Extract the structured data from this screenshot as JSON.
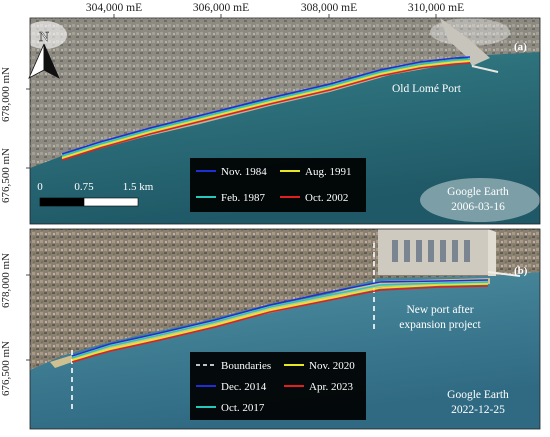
{
  "axes": {
    "easting_ticks": [
      "304,000 mE",
      "306,000 mE",
      "308,000 mE",
      "310,000 mE"
    ],
    "northing_ticks_a": [
      "678,000 mN",
      "676,500 mN"
    ],
    "northing_ticks_b": [
      "678,000 mN",
      "676,500 mN"
    ]
  },
  "north_arrow": {
    "label": "N",
    "icon": "north-arrow-icon"
  },
  "scale_bar": {
    "labels": [
      "0",
      "0.75",
      "1.5 km"
    ]
  },
  "panel_a": {
    "tag": "(a)",
    "place_label": "Old Lomé Port",
    "source": "Google Earth",
    "date": "2006-03-16",
    "legend": [
      {
        "label": "Nov. 1984",
        "color": "#1f2fd6",
        "style": "solid"
      },
      {
        "label": "Aug. 1991",
        "color": "#e8e624",
        "style": "solid"
      },
      {
        "label": "Feb. 1987",
        "color": "#27c7b9",
        "style": "solid"
      },
      {
        "label": "Oct. 2002",
        "color": "#e21f1f",
        "style": "solid"
      }
    ]
  },
  "panel_b": {
    "tag": "(b)",
    "place_label_line1": "New port after",
    "place_label_line2": "expansion project",
    "source": "Google Earth",
    "date": "2022-12-25",
    "legend": [
      {
        "label": "Boundaries",
        "color": "#ffffff",
        "style": "dashed"
      },
      {
        "label": "Nov. 2020",
        "color": "#e8e624",
        "style": "solid"
      },
      {
        "label": "Dec. 2014",
        "color": "#1f2fd6",
        "style": "solid"
      },
      {
        "label": "Apr. 2023",
        "color": "#e21f1f",
        "style": "solid"
      },
      {
        "label": "Oct. 2017",
        "color": "#27c7b9",
        "style": "solid"
      }
    ]
  }
}
